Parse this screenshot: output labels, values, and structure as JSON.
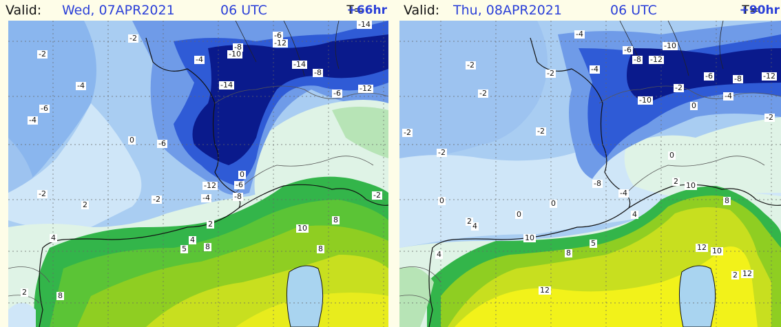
{
  "panels": [
    {
      "valid_label": "Valid:",
      "valid_time": "Wed, 07APR2021",
      "utc": "06 UTC",
      "t_label": "T=",
      "t_value": "+66hr",
      "contour_labels": [
        "-2",
        "-14",
        "-6",
        "-12",
        "-8",
        "-10",
        "-4",
        "-2",
        "-14",
        "-14",
        "-8",
        "-4",
        "-6",
        "-12",
        "-6",
        "-4",
        "0",
        "-6",
        "0",
        "-12",
        "-6",
        "-4",
        "-8",
        "-2",
        "2",
        "-2",
        "2",
        "10",
        "8",
        "4",
        "4",
        "8",
        "5",
        "8",
        "2",
        "8",
        "-2"
      ]
    },
    {
      "valid_label": "Valid:",
      "valid_time": "Thu, 08APR2021",
      "utc": "06 UTC",
      "t_label": "T=",
      "t_value": "+90hr",
      "contour_labels": [
        "-4",
        "-6",
        "-10",
        "-8",
        "-12",
        "-2",
        "-2",
        "-4",
        "-2",
        "-6",
        "-8",
        "-12",
        "-2",
        "-10",
        "-4",
        "0",
        "-2",
        "-2",
        "-2",
        "0",
        "-8",
        "-2",
        "-4",
        "2",
        "10",
        "0",
        "8",
        "0",
        "0",
        "2",
        "4",
        "10",
        "4",
        "8",
        "5",
        "4",
        "12",
        "10",
        "12",
        "2",
        "12"
      ]
    }
  ],
  "colors": {
    "deep_blue": "#0a1a8c",
    "blue": "#2f5bd6",
    "mid_blue": "#6f9be8",
    "light_blue": "#a9cdf2",
    "pale_blue": "#cfe6f8",
    "pale_green": "#dff3e6",
    "light_green": "#93dc96",
    "green": "#33b54a",
    "lime": "#8fce22",
    "yellow_green": "#c8df1f",
    "yellow": "#f2f21a",
    "header_blue": "#2a3fd8"
  }
}
